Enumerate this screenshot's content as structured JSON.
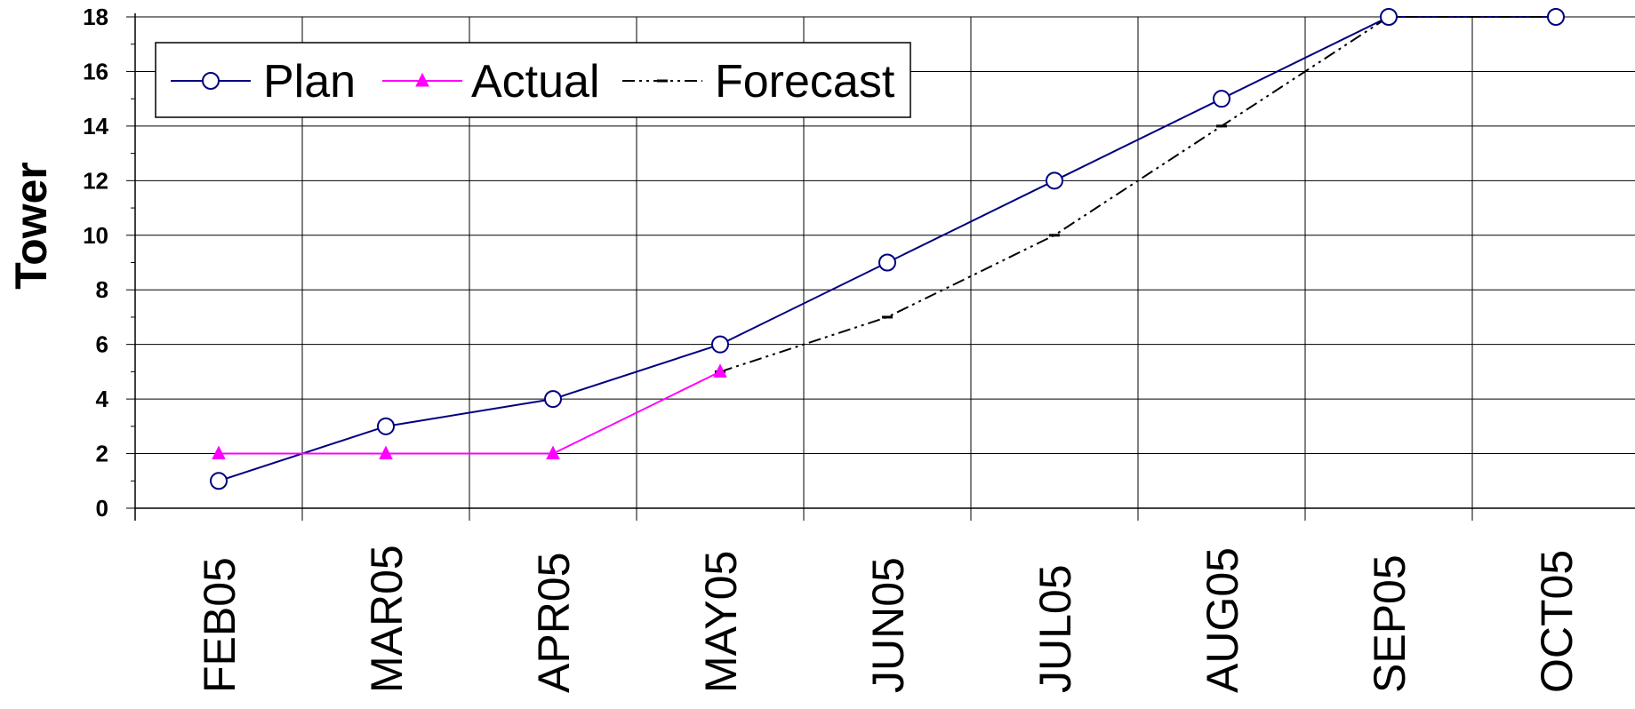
{
  "chart_data": {
    "type": "line",
    "title": "",
    "xlabel": "",
    "ylabel": "Tower",
    "categories": [
      "FEB05",
      "MAR05",
      "APR05",
      "MAY05",
      "JUN05",
      "JUL05",
      "AUG05",
      "SEP05",
      "OCT05"
    ],
    "ylim": [
      0,
      18
    ],
    "y_ticks": [
      "0",
      "2",
      "4",
      "6",
      "8",
      "10",
      "12",
      "14",
      "16",
      "18"
    ],
    "grid": true,
    "legend_position": "top-left",
    "series": [
      {
        "name": "Plan",
        "color": "#000080",
        "marker": "circle",
        "values": [
          1,
          3,
          4,
          6,
          9,
          12,
          15,
          18,
          18
        ]
      },
      {
        "name": "Actual",
        "color": "#ff00ff",
        "marker": "triangle",
        "values": [
          2,
          2,
          2,
          5,
          null,
          null,
          null,
          null,
          null
        ]
      },
      {
        "name": "Forecast",
        "color": "#000000",
        "marker": "dash",
        "line_style": "dash-dot-dot",
        "values": [
          null,
          null,
          null,
          5,
          7,
          10,
          14,
          18,
          18
        ]
      }
    ]
  }
}
